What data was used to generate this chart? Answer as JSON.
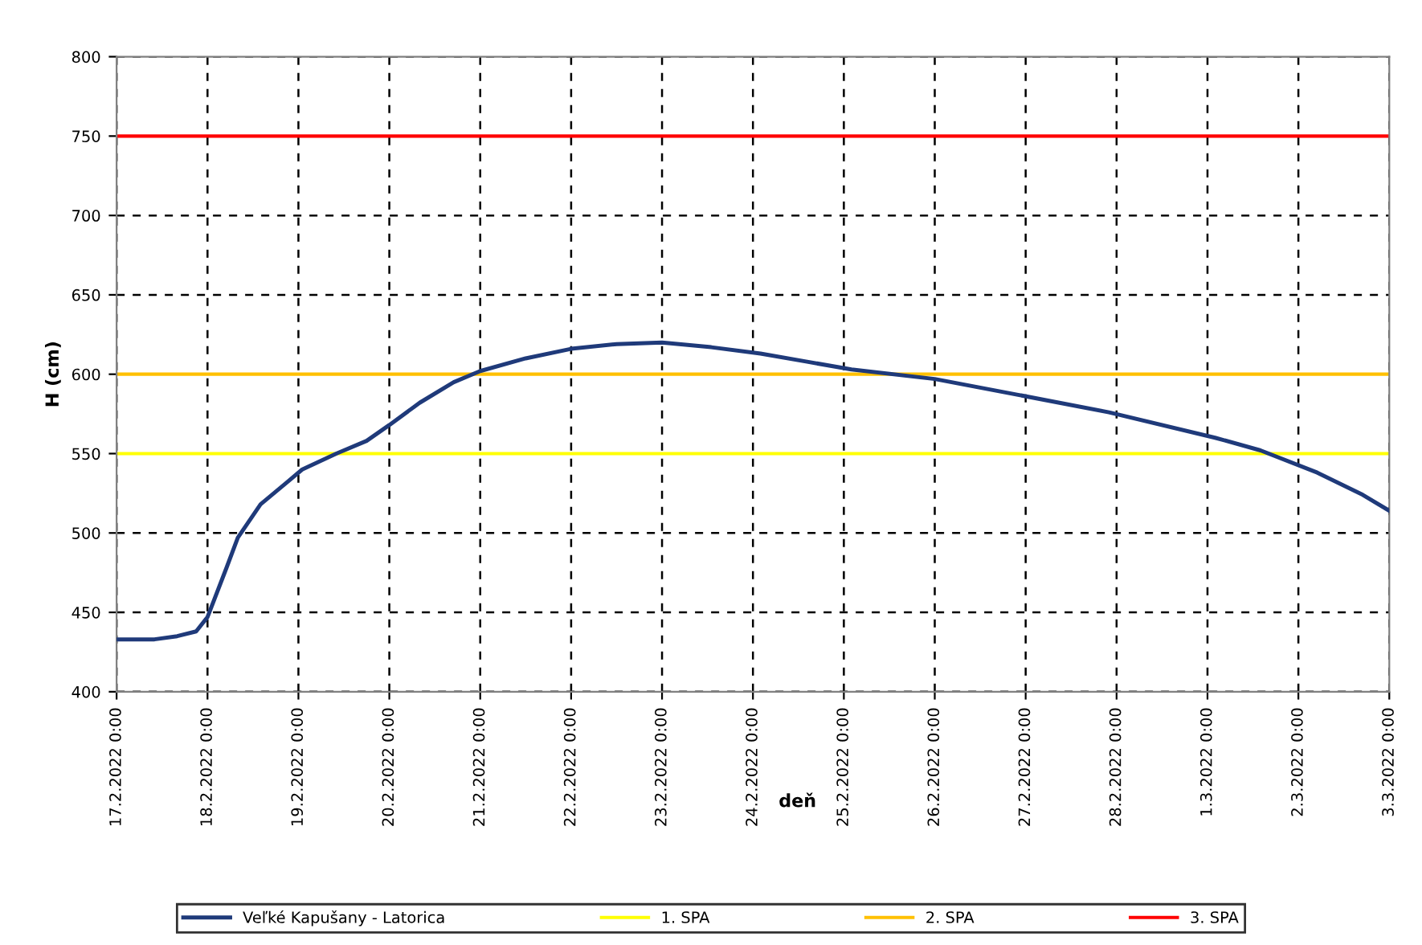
{
  "chart_data": {
    "type": "line",
    "xlabel": "deň",
    "ylabel": "H (cm)",
    "xlim": [
      "2022-02-17T00:00",
      "2022-03-03T00:00"
    ],
    "xticks": [
      {
        "value": "2022-02-17",
        "label": "17.2.2022 0:00"
      },
      {
        "value": "2022-02-18",
        "label": "18.2.2022 0:00"
      },
      {
        "value": "2022-02-19",
        "label": "19.2.2022 0:00"
      },
      {
        "value": "2022-02-20",
        "label": "20.2.2022 0:00"
      },
      {
        "value": "2022-02-21",
        "label": "21.2.2022 0:00"
      },
      {
        "value": "2022-02-22",
        "label": "22.2.2022 0:00"
      },
      {
        "value": "2022-02-23",
        "label": "23.2.2022 0:00"
      },
      {
        "value": "2022-02-24",
        "label": "24.2.2022 0:00"
      },
      {
        "value": "2022-02-25",
        "label": "25.2.2022 0:00"
      },
      {
        "value": "2022-02-26",
        "label": "26.2.2022 0:00"
      },
      {
        "value": "2022-02-27",
        "label": "27.2.2022 0:00"
      },
      {
        "value": "2022-02-28",
        "label": "28.2.2022 0:00"
      },
      {
        "value": "2022-03-01",
        "label": "1.3.2022 0:00"
      },
      {
        "value": "2022-03-02",
        "label": "2.3.2022 0:00"
      },
      {
        "value": "2022-03-03",
        "label": "3.3.2022 0:00"
      }
    ],
    "ylim": [
      400,
      800
    ],
    "yticks": [
      400,
      450,
      500,
      550,
      600,
      650,
      700,
      750,
      800
    ],
    "grid": true,
    "legend": "bottom",
    "line_style": "solid",
    "marker": "none",
    "x": [
      "2022-02-17T00:00",
      "2022-02-17T10:00",
      "2022-02-17T16:00",
      "2022-02-17T21:00",
      "2022-02-18T00:00",
      "2022-02-18T05:00",
      "2022-02-18T08:00",
      "2022-02-18T14:00",
      "2022-02-18T21:00",
      "2022-02-19T01:00",
      "2022-02-19T10:00",
      "2022-02-19T18:00",
      "2022-02-20T00:00",
      "2022-02-20T08:00",
      "2022-02-20T17:00",
      "2022-02-21T00:00",
      "2022-02-21T12:00",
      "2022-02-22T00:00",
      "2022-02-22T12:00",
      "2022-02-23T00:00",
      "2022-02-23T13:00",
      "2022-02-24T02:00",
      "2022-02-24T14:00",
      "2022-02-25T02:00",
      "2022-02-26T00:00",
      "2022-02-26T22:00",
      "2022-02-27T22:00",
      "2022-03-01T02:00",
      "2022-03-01T14:00",
      "2022-03-02T05:00",
      "2022-03-02T17:00",
      "2022-03-03T00:00"
    ],
    "series": [
      {
        "name": "Veľké Kapušany - Latorica",
        "color": "#1f3a7a",
        "values": [
          433,
          433,
          435,
          438,
          447,
          478,
          497,
          518,
          532,
          540,
          550,
          558,
          568,
          582,
          595,
          602,
          610,
          616,
          619,
          620,
          617,
          613,
          608,
          603,
          597,
          587,
          576,
          560,
          552,
          538,
          524,
          514
        ]
      }
    ],
    "ref_lines": [
      {
        "axis": "y",
        "value": 550,
        "label": "1. SPA",
        "color": "#ffff00",
        "line_style": "solid"
      },
      {
        "axis": "y",
        "value": 600,
        "label": "2. SPA",
        "color": "#ffc000",
        "line_style": "solid"
      },
      {
        "axis": "y",
        "value": 750,
        "label": "3. SPA",
        "color": "#ff0000",
        "line_style": "solid"
      }
    ]
  }
}
